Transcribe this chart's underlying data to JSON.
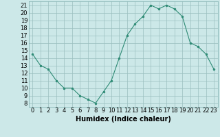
{
  "x": [
    0,
    1,
    2,
    3,
    4,
    5,
    6,
    7,
    8,
    9,
    10,
    11,
    12,
    13,
    14,
    15,
    16,
    17,
    18,
    19,
    20,
    21,
    22,
    23
  ],
  "y": [
    14.5,
    13.0,
    12.5,
    11.0,
    10.0,
    10.0,
    9.0,
    8.5,
    8.0,
    9.5,
    11.0,
    14.0,
    17.0,
    18.5,
    19.5,
    21.0,
    20.5,
    21.0,
    20.5,
    19.5,
    16.0,
    15.5,
    14.5,
    12.5
  ],
  "xlim": [
    -0.5,
    23.5
  ],
  "ylim": [
    7.5,
    21.5
  ],
  "yticks": [
    8,
    9,
    10,
    11,
    12,
    13,
    14,
    15,
    16,
    17,
    18,
    19,
    20,
    21
  ],
  "xticks": [
    0,
    1,
    2,
    3,
    4,
    5,
    6,
    7,
    8,
    9,
    10,
    11,
    12,
    13,
    14,
    15,
    16,
    17,
    18,
    19,
    20,
    21,
    22,
    23
  ],
  "xlabel": "Humidex (Indice chaleur)",
  "line_color": "#2e8b75",
  "marker": "o",
  "marker_size": 2.0,
  "bg_color": "#cce8e8",
  "grid_color": "#9bbfbf",
  "xlabel_fontsize": 7,
  "tick_fontsize": 6
}
